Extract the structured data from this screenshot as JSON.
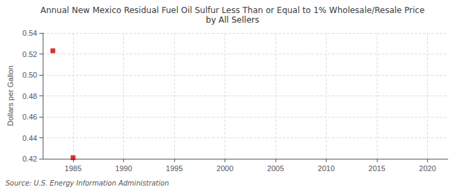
{
  "chart_data": {
    "type": "scatter",
    "title": "Annual New Mexico Residual Fuel Oil Sulfur Less Than or Equal to 1% Wholesale/Resale Price",
    "subtitle": "by All Sellers",
    "ylabel": "Dollars per Gallon",
    "source": "Source: U.S. Energy Information Administration",
    "x": [
      1983,
      1985
    ],
    "values": [
      0.523,
      0.421
    ],
    "color": "#cc0000",
    "marker": "square",
    "xlim": [
      1982,
      2022
    ],
    "xticks": [
      1985,
      1990,
      1995,
      2000,
      2005,
      2010,
      2015,
      2020
    ],
    "ylim": [
      0.42,
      0.54
    ],
    "yticks": [
      0.42,
      0.44,
      0.46,
      {
        "value": 0.5,
        "label": "0.50"
      },
      0.48,
      0.52,
      0.54
    ],
    "grid": true
  }
}
